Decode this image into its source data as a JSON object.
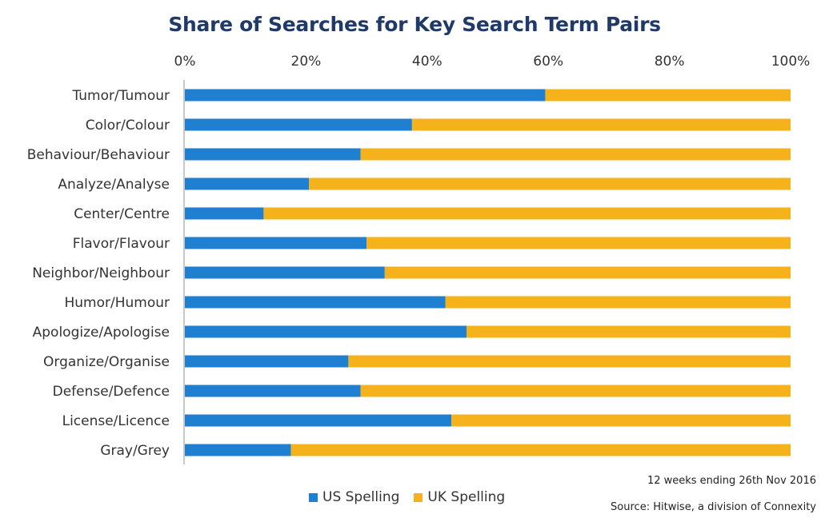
{
  "chart_data": {
    "type": "bar",
    "orientation": "horizontal",
    "stacked": true,
    "title": "Share of Searches for Key Search Term Pairs",
    "categories": [
      "Tumor/Tumour",
      "Color/Colour",
      "Behaviour/Behaviour",
      "Analyze/Analyse",
      "Center/Centre",
      "Flavor/Flavour",
      "Neighbor/Neighbour",
      "Humor/Humour",
      "Apologize/Apologise",
      "Organize/Organise",
      "Defense/Defence",
      "License/Licence",
      "Gray/Grey"
    ],
    "series": [
      {
        "name": "US Spelling",
        "color": "#1f7fd1",
        "values": [
          59.5,
          37.5,
          29,
          20.5,
          13,
          30,
          33,
          43,
          46.5,
          27,
          29,
          44,
          17.5
        ]
      },
      {
        "name": "UK Spelling",
        "color": "#f6b21b",
        "values": [
          40.5,
          62.5,
          71,
          79.5,
          87,
          70,
          67,
          57,
          53.5,
          73,
          71,
          56,
          82.5
        ]
      }
    ],
    "xlim": [
      0,
      100
    ],
    "x_ticks": [
      "0%",
      "20%",
      "40%",
      "60%",
      "80%",
      "100%"
    ],
    "x_tick_values": [
      0,
      20,
      40,
      60,
      80,
      100
    ],
    "x_axis_position": "top",
    "grid": false,
    "legend_position": "bottom"
  },
  "notes": {
    "period": "12 weeks ending 26th Nov 2016",
    "source": "Source: Hitwise, a division of Connexity"
  }
}
